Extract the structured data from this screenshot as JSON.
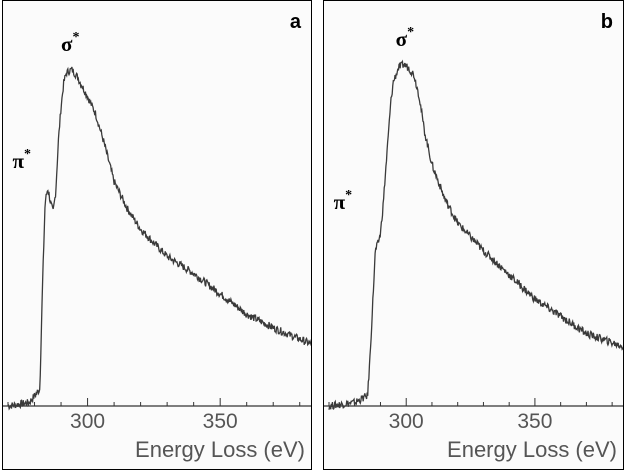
{
  "chart_data": [
    {
      "type": "line",
      "panel": "a",
      "xlabel": "Energy Loss (eV)",
      "ylabel": "",
      "xlim": [
        270,
        385
      ],
      "ylim": [
        0,
        1
      ],
      "x_ticks": [
        300,
        350
      ],
      "grid": false,
      "annotations": [
        {
          "text": "σ*",
          "x": 293,
          "y": 1.0
        },
        {
          "text": "π*",
          "x": 284.5,
          "y": 0.68
        }
      ],
      "series": [
        {
          "x": [
            270,
            278,
            282,
            283,
            284,
            285,
            286,
            287,
            288,
            289,
            290,
            291,
            292,
            294,
            296,
            298,
            300,
            303,
            306,
            310,
            315,
            320,
            330,
            340,
            350,
            360,
            370,
            385
          ],
          "values": [
            0.0,
            0.01,
            0.05,
            0.35,
            0.6,
            0.64,
            0.6,
            0.57,
            0.63,
            0.78,
            0.88,
            0.95,
            0.98,
            0.99,
            0.97,
            0.94,
            0.91,
            0.86,
            0.78,
            0.66,
            0.58,
            0.52,
            0.44,
            0.39,
            0.33,
            0.27,
            0.23,
            0.18
          ]
        }
      ]
    },
    {
      "type": "line",
      "panel": "b",
      "xlabel": "Energy Loss (eV)",
      "ylabel": "",
      "xlim": [
        270,
        385
      ],
      "ylim": [
        0,
        1
      ],
      "x_ticks": [
        300,
        350
      ],
      "grid": false,
      "annotations": [
        {
          "text": "σ*",
          "x": 299,
          "y": 1.0
        },
        {
          "text": "π*",
          "x": 285,
          "y": 0.55
        }
      ],
      "series": [
        {
          "x": [
            270,
            280,
            285,
            286,
            287,
            288,
            289,
            290,
            291,
            292,
            293,
            294,
            295,
            297,
            299,
            301,
            303,
            305,
            307,
            310,
            315,
            320,
            330,
            340,
            350,
            360,
            370,
            385
          ],
          "values": [
            0.0,
            0.01,
            0.03,
            0.15,
            0.3,
            0.45,
            0.47,
            0.5,
            0.58,
            0.68,
            0.78,
            0.88,
            0.94,
            0.98,
            0.99,
            0.98,
            0.96,
            0.9,
            0.8,
            0.7,
            0.6,
            0.53,
            0.45,
            0.38,
            0.31,
            0.26,
            0.21,
            0.17
          ]
        }
      ]
    }
  ],
  "panels": [
    {
      "letter": "a",
      "sigma_label": "σ",
      "pi_label": "π",
      "star": "*",
      "xlabel": "Energy Loss (eV)",
      "ticks": [
        "300",
        "350"
      ]
    },
    {
      "letter": "b",
      "sigma_label": "σ",
      "pi_label": "π",
      "star": "*",
      "xlabel": "Energy Loss (eV)",
      "ticks": [
        "300",
        "350"
      ]
    }
  ]
}
